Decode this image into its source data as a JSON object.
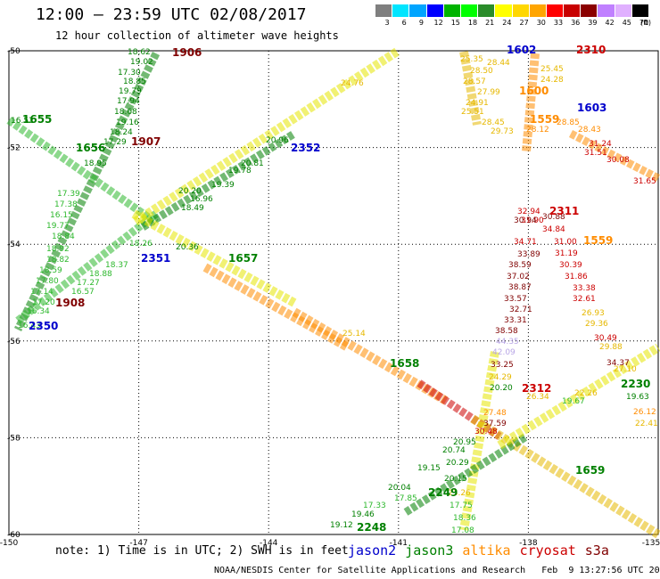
{
  "header": {
    "title": "12:00 – 23:59 UTC 02/08/2017",
    "subtitle": "12 hour collection of altimeter wave heights"
  },
  "colorbar": {
    "unit": "(ft)",
    "ticks": [
      "3",
      "6",
      "9",
      "12",
      "15",
      "18",
      "21",
      "24",
      "27",
      "30",
      "33",
      "36",
      "39",
      "42",
      "45",
      "70"
    ],
    "colors": [
      "#7f7f7f",
      "#00e5ff",
      "#00a5ff",
      "#0000ff",
      "#00b400",
      "#00ff00",
      "#2a8c2a",
      "#ffff00",
      "#ffd700",
      "#ffa500",
      "#ff0000",
      "#c80000",
      "#8b0000",
      "#c080ff",
      "#e0b0ff",
      "#000000"
    ]
  },
  "axes": {
    "y_labels": [
      "-50",
      "-52",
      "-54",
      "-56",
      "-58",
      "-60"
    ],
    "x_labels": [
      "-150",
      "-147",
      "-144",
      "-141",
      "-138",
      "-135"
    ]
  },
  "footer": {
    "note": "note: 1) Time is in UTC; 2) SWH is in feet",
    "legend": [
      {
        "name": "jason2",
        "color": "#0000cc"
      },
      {
        "name": "jason3",
        "color": "#008000"
      },
      {
        "name": "altika",
        "color": "#ff8c00"
      },
      {
        "name": "cryosat",
        "color": "#cc0000"
      },
      {
        "name": "s3a",
        "color": "#800000"
      }
    ],
    "credit": "NOAA/NESDIS Center for Satellite Applications and Research   Feb  9 13:27:56 UTC 2017"
  },
  "colors": {
    "jason2": "#0000cc",
    "jason3": "#008000",
    "light_green": "#2db82d",
    "yellow": "#e6e600",
    "altika": "#ff8c00",
    "gold": "#e6b800",
    "cryosat": "#cc0000",
    "s3a": "#800000",
    "lavender": "#b8a6e6"
  },
  "pass_labels": [
    {
      "text": "1906",
      "color": "#800000"
    },
    {
      "text": "1655",
      "color": "#008000"
    },
    {
      "text": "1656",
      "color": "#008000"
    },
    {
      "text": "1907",
      "color": "#800000"
    },
    {
      "text": "2352",
      "color": "#0000cc"
    },
    {
      "text": "1602",
      "color": "#0000cc"
    },
    {
      "text": "2310",
      "color": "#cc0000"
    },
    {
      "text": "1603",
      "color": "#0000cc"
    },
    {
      "text": "1600",
      "color": "#ff8c00"
    },
    {
      "text": "1559",
      "color": "#ff8c00"
    },
    {
      "text": "2311",
      "color": "#cc0000"
    },
    {
      "text": "1559",
      "color": "#ff8c00"
    },
    {
      "text": "2351",
      "color": "#0000cc"
    },
    {
      "text": "1657",
      "color": "#008000"
    },
    {
      "text": "1908",
      "color": "#800000"
    },
    {
      "text": "2350",
      "color": "#0000cc"
    },
    {
      "text": "1658",
      "color": "#008000"
    },
    {
      "text": "2312",
      "color": "#cc0000"
    },
    {
      "text": "2230",
      "color": "#008000"
    },
    {
      "text": "2249",
      "color": "#008000"
    },
    {
      "text": "2248",
      "color": "#008000"
    },
    {
      "text": "1659",
      "color": "#008000"
    }
  ],
  "observations": [
    {
      "text": "18.62",
      "color": "#008000"
    },
    {
      "text": "19.02",
      "color": "#008000"
    },
    {
      "text": "17.30",
      "color": "#008000"
    },
    {
      "text": "18.85",
      "color": "#008000"
    },
    {
      "text": "19.79",
      "color": "#008000"
    },
    {
      "text": "17.94",
      "color": "#008000"
    },
    {
      "text": "18.68",
      "color": "#008000"
    },
    {
      "text": "19.16",
      "color": "#008000"
    },
    {
      "text": "16.52",
      "color": "#008000"
    },
    {
      "text": "18.24",
      "color": "#008000"
    },
    {
      "text": "17.29",
      "color": "#008000"
    },
    {
      "text": "18.95",
      "color": "#008000"
    },
    {
      "text": "17.39",
      "color": "#2db82d"
    },
    {
      "text": "17.38",
      "color": "#2db82d"
    },
    {
      "text": "16.15",
      "color": "#2db82d"
    },
    {
      "text": "19.77",
      "color": "#2db82d"
    },
    {
      "text": "18.84",
      "color": "#2db82d"
    },
    {
      "text": "18.92",
      "color": "#2db82d"
    },
    {
      "text": "18.82",
      "color": "#2db82d"
    },
    {
      "text": "18.59",
      "color": "#2db82d"
    },
    {
      "text": "17.80",
      "color": "#2db82d"
    },
    {
      "text": "17.14",
      "color": "#2db82d"
    },
    {
      "text": "17.20",
      "color": "#2db82d"
    },
    {
      "text": "16.34",
      "color": "#2db82d"
    },
    {
      "text": "16.43",
      "color": "#2db82d"
    },
    {
      "text": "18.26",
      "color": "#2db82d"
    },
    {
      "text": "18.37",
      "color": "#2db82d"
    },
    {
      "text": "18.88",
      "color": "#2db82d"
    },
    {
      "text": "17.27",
      "color": "#2db82d"
    },
    {
      "text": "16.57",
      "color": "#2db82d"
    },
    {
      "text": "18.49",
      "color": "#008000"
    },
    {
      "text": "16.96",
      "color": "#008000"
    },
    {
      "text": "20.20",
      "color": "#008000"
    },
    {
      "text": "19.39",
      "color": "#008000"
    },
    {
      "text": "19.78",
      "color": "#008000"
    },
    {
      "text": "20.81",
      "color": "#008000"
    },
    {
      "text": "20.96",
      "color": "#008000"
    },
    {
      "text": "20.36",
      "color": "#008000"
    },
    {
      "text": "24.76",
      "color": "#e6b800"
    },
    {
      "text": "28.44",
      "color": "#e6b800"
    },
    {
      "text": "25.35",
      "color": "#e6b800"
    },
    {
      "text": "28.50",
      "color": "#e6b800"
    },
    {
      "text": "28.57",
      "color": "#e6b800"
    },
    {
      "text": "27.99",
      "color": "#e6b800"
    },
    {
      "text": "24.91",
      "color": "#e6b800"
    },
    {
      "text": "25.51",
      "color": "#e6b800"
    },
    {
      "text": "28.45",
      "color": "#e6b800"
    },
    {
      "text": "29.73",
      "color": "#e6b800"
    },
    {
      "text": "25.45",
      "color": "#e6b800"
    },
    {
      "text": "24.28",
      "color": "#e6b800"
    },
    {
      "text": "28.12",
      "color": "#ff8c00"
    },
    {
      "text": "28.85",
      "color": "#ff8c00"
    },
    {
      "text": "28.43",
      "color": "#ff8c00"
    },
    {
      "text": "31.24",
      "color": "#cc0000"
    },
    {
      "text": "31.51",
      "color": "#cc0000"
    },
    {
      "text": "30.08",
      "color": "#cc0000"
    },
    {
      "text": "31.65",
      "color": "#cc0000"
    },
    {
      "text": "31.90",
      "color": "#cc0000"
    },
    {
      "text": "32.94",
      "color": "#cc0000"
    },
    {
      "text": "30.94",
      "color": "#800000"
    },
    {
      "text": "30.88",
      "color": "#800000"
    },
    {
      "text": "34.84",
      "color": "#cc0000"
    },
    {
      "text": "34.71",
      "color": "#cc0000"
    },
    {
      "text": "31.00",
      "color": "#cc0000"
    },
    {
      "text": "33.89",
      "color": "#800000"
    },
    {
      "text": "31.19",
      "color": "#cc0000"
    },
    {
      "text": "38.59",
      "color": "#800000"
    },
    {
      "text": "30.39",
      "color": "#cc0000"
    },
    {
      "text": "37.02",
      "color": "#800000"
    },
    {
      "text": "31.86",
      "color": "#cc0000"
    },
    {
      "text": "38.87",
      "color": "#800000"
    },
    {
      "text": "33.38",
      "color": "#cc0000"
    },
    {
      "text": "33.57",
      "color": "#800000"
    },
    {
      "text": "32.61",
      "color": "#cc0000"
    },
    {
      "text": "32.71",
      "color": "#800000"
    },
    {
      "text": "26.93",
      "color": "#e6b800"
    },
    {
      "text": "33.31",
      "color": "#800000"
    },
    {
      "text": "29.36",
      "color": "#e6b800"
    },
    {
      "text": "38.58",
      "color": "#800000"
    },
    {
      "text": "30.49",
      "color": "#cc0000"
    },
    {
      "text": "44.35",
      "color": "#b8a6e6"
    },
    {
      "text": "29.88",
      "color": "#e6b800"
    },
    {
      "text": "42.09",
      "color": "#b8a6e6"
    },
    {
      "text": "27.10",
      "color": "#e6b800"
    },
    {
      "text": "34.37",
      "color": "#800000"
    },
    {
      "text": "33.25",
      "color": "#800000"
    },
    {
      "text": "24.29",
      "color": "#e6b800"
    },
    {
      "text": "20.20",
      "color": "#008000"
    },
    {
      "text": "22.26",
      "color": "#e6b800"
    },
    {
      "text": "19.67",
      "color": "#2db82d"
    },
    {
      "text": "19.63",
      "color": "#008000"
    },
    {
      "text": "26.12",
      "color": "#ff8c00"
    },
    {
      "text": "27.48",
      "color": "#ff8c00"
    },
    {
      "text": "22.41",
      "color": "#e6b800"
    },
    {
      "text": "37.59",
      "color": "#800000"
    },
    {
      "text": "26.34",
      "color": "#e6b800"
    },
    {
      "text": "25.14",
      "color": "#e6b800"
    },
    {
      "text": "30.48",
      "color": "#cc0000"
    },
    {
      "text": "20.95",
      "color": "#008000"
    },
    {
      "text": "20.74",
      "color": "#008000"
    },
    {
      "text": "20.29",
      "color": "#008000"
    },
    {
      "text": "19.15",
      "color": "#008000"
    },
    {
      "text": "20.15",
      "color": "#008000"
    },
    {
      "text": "23.26",
      "color": "#e6b800"
    },
    {
      "text": "20.04",
      "color": "#008000"
    },
    {
      "text": "17.85",
      "color": "#2db82d"
    },
    {
      "text": "17.33",
      "color": "#2db82d"
    },
    {
      "text": "17.75",
      "color": "#2db82d"
    },
    {
      "text": "19.46",
      "color": "#008000"
    },
    {
      "text": "18.36",
      "color": "#2db82d"
    },
    {
      "text": "19.12",
      "color": "#008000"
    },
    {
      "text": "17.08",
      "color": "#2db82d"
    },
    {
      "text": "19.16",
      "color": "#008000"
    }
  ]
}
